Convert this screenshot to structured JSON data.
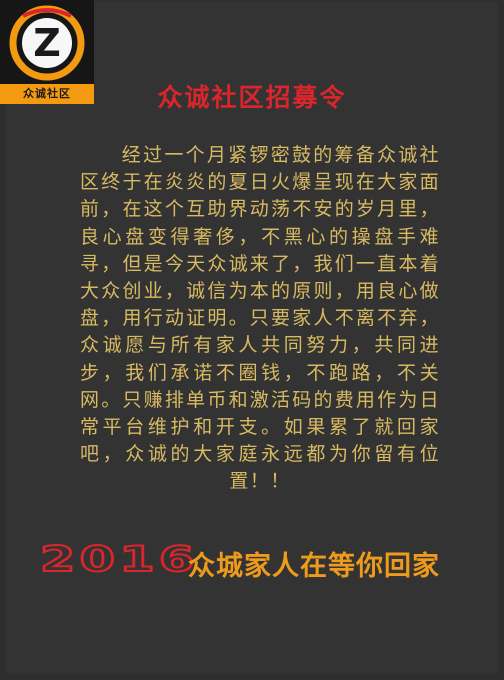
{
  "logo": {
    "letter": "Z",
    "label": "众诚社区"
  },
  "title": "众诚社区招募令",
  "body": "经过一个月紧锣密鼓的筹备众诚社区终于在炎炎的夏日火爆呈现在大家面前，在这个互助界动荡不安的岁月里，良心盘变得奢侈，不黑心的操盘手难寻，但是今天众诚来了，我们一直本着大众创业，诚信为本的原则，用良心做盘，用行动证明。只要家人不离不弃，众诚愿与所有家人共同努力，共同进步，我们承诺不圈钱，不跑路，不关网。只赚排单币和激活码的费用作为日常平台维护和开支。如果累了就回家吧，众诚的大家庭永远都为你留有位置！！",
  "footer": {
    "year": "2016",
    "slogan": "众城家人在等你回家"
  },
  "colors": {
    "background": "#2e2e2e",
    "title_red": "#d9262c",
    "body_gold": "#d7ba62",
    "logo_orange": "#f39a11",
    "slogan_orange": "#ee9b1c"
  }
}
